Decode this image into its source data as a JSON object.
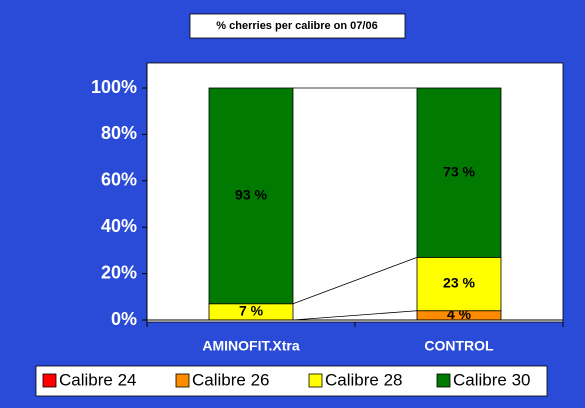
{
  "chart_data": {
    "type": "stacked_bar",
    "title": "% cherries per calibre on 07/06",
    "categories": [
      "AMINOFIT.Xtra",
      "CONTROL"
    ],
    "series": [
      {
        "name": "Calibre 24",
        "color": "#ff0000",
        "values": [
          0,
          0
        ],
        "value_labels": [
          null,
          null
        ]
      },
      {
        "name": "Calibre 26",
        "color": "#ff8c00",
        "values": [
          0,
          4
        ],
        "value_labels": [
          null,
          "4 %"
        ]
      },
      {
        "name": "Calibre 28",
        "color": "#ffff00",
        "values": [
          7,
          23
        ],
        "value_labels": [
          "7 %",
          "23 %"
        ]
      },
      {
        "name": "Calibre 30",
        "color": "#007a00",
        "values": [
          93,
          73
        ],
        "value_labels": [
          "93 %",
          "73 %"
        ]
      }
    ],
    "ylim": [
      0,
      100
    ],
    "yticks": [
      {
        "value": 0,
        "label": "0%"
      },
      {
        "value": 20,
        "label": "20%"
      },
      {
        "value": 40,
        "label": "40%"
      },
      {
        "value": 60,
        "label": "60%"
      },
      {
        "value": 80,
        "label": "80%"
      },
      {
        "value": 100,
        "label": "100%"
      }
    ],
    "legend": "bottom"
  }
}
